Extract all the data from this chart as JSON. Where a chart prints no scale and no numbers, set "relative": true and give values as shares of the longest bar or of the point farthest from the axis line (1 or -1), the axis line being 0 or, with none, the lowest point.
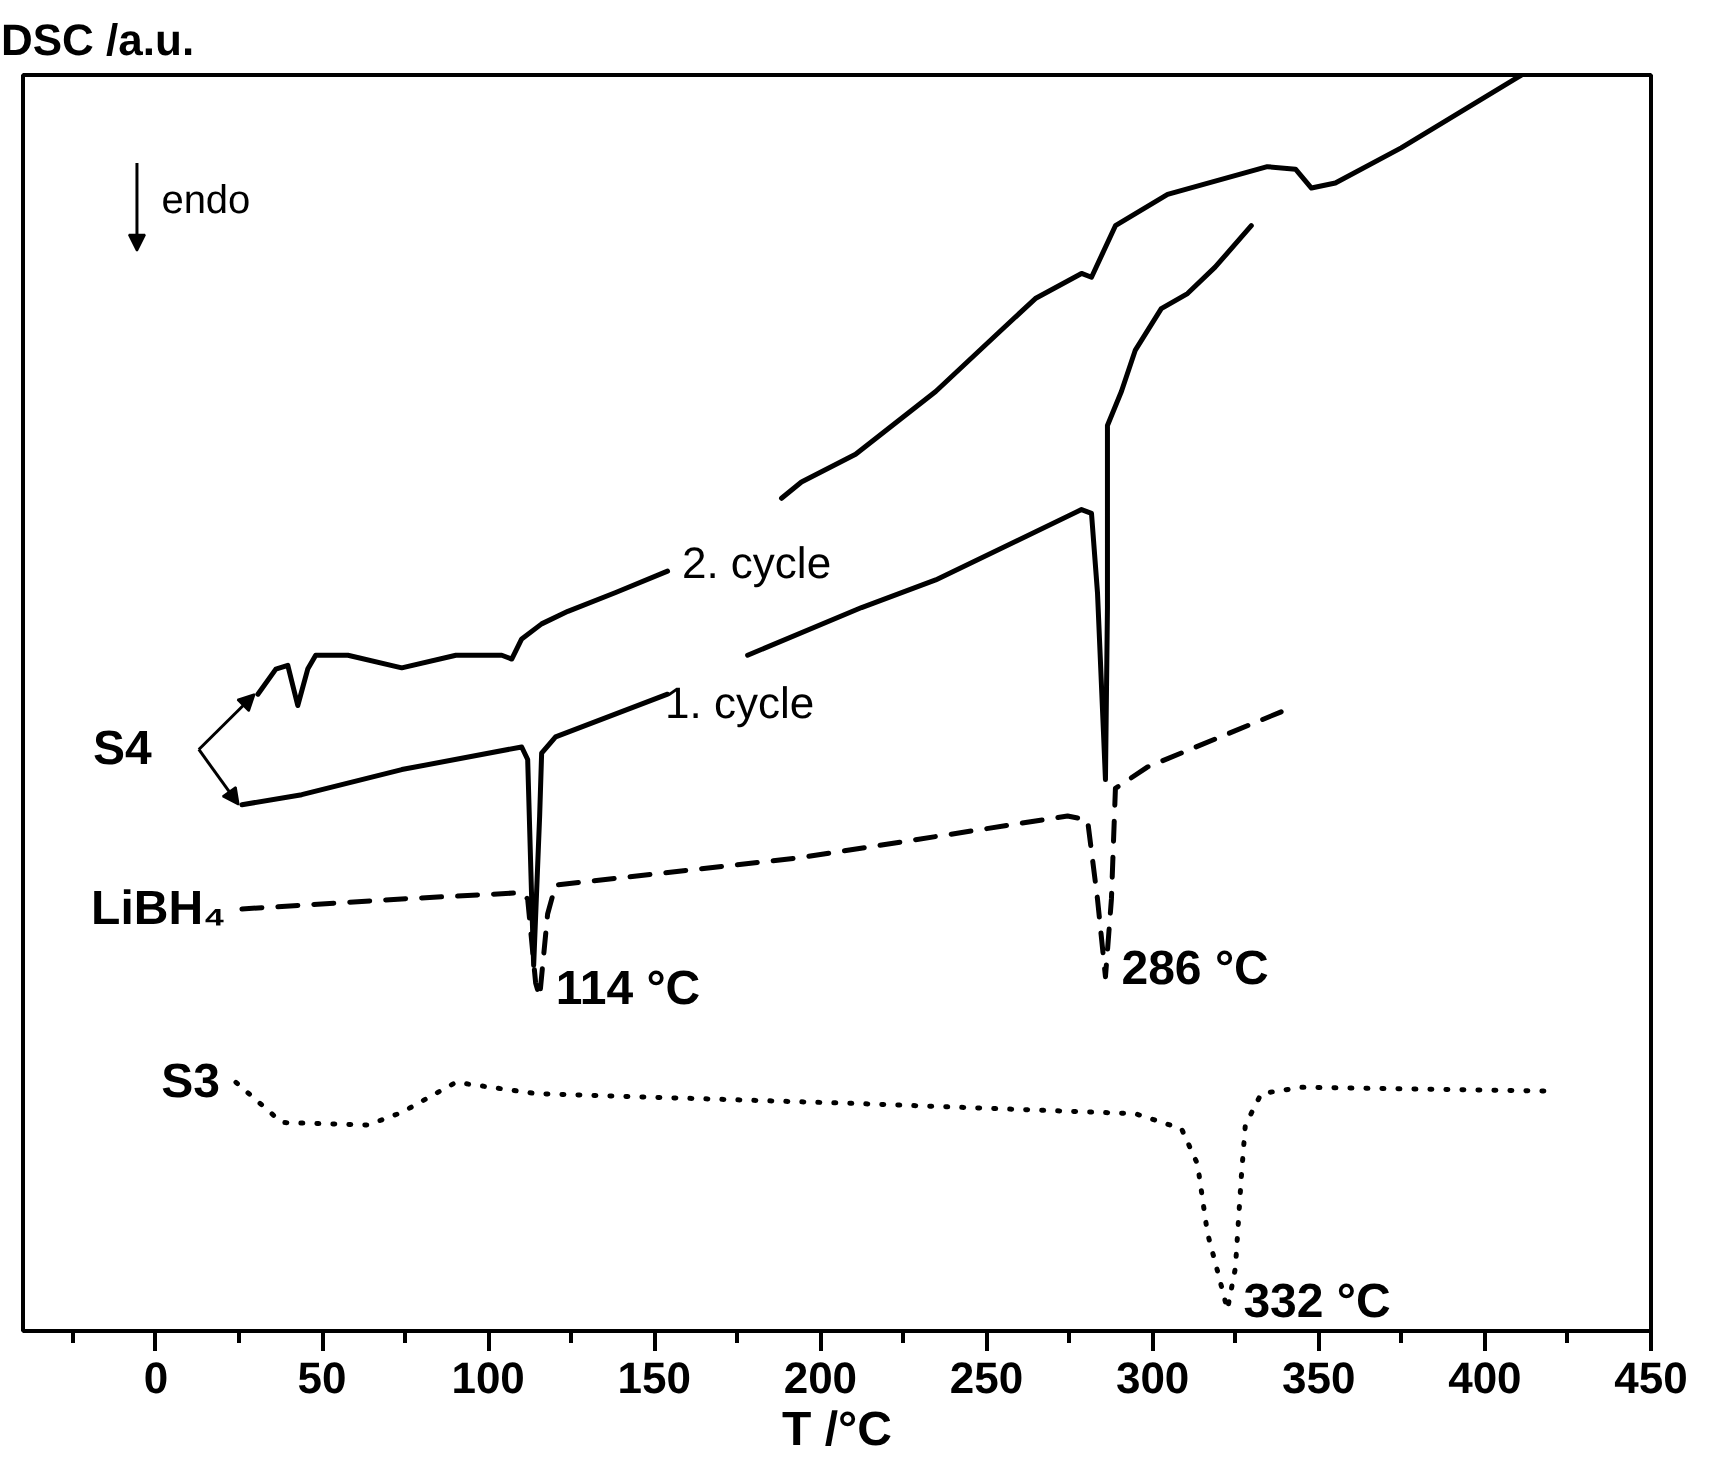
{
  "chart_data": {
    "type": "line",
    "relative": true,
    "ylabel": "DSC /a.u.",
    "xlabel": "T /°C",
    "xlim": [
      -40,
      450
    ],
    "xticks": [
      {
        "value": -25,
        "label": null
      },
      0,
      {
        "value": 25,
        "label": null
      },
      50,
      {
        "value": 75,
        "label": null
      },
      100,
      {
        "value": 125,
        "label": null
      },
      150,
      {
        "value": 175,
        "label": null
      },
      200,
      {
        "value": 225,
        "label": null
      },
      250,
      {
        "value": 275,
        "label": null
      },
      300,
      {
        "value": 325,
        "label": null
      },
      350,
      {
        "value": 375,
        "label": null
      },
      400,
      {
        "value": 425,
        "label": null
      },
      450
    ],
    "grid": false,
    "tick_labels": "x",
    "annotations": [
      "endo",
      "S4",
      {
        "text": "114 °C",
        "x": 115.5,
        "y": 0.266
      },
      {
        "text": "286 °C",
        "x": 285.8,
        "y": 0.282
      },
      {
        "text": "332 °C",
        "x": 322.5,
        "y": 0.017
      }
    ],
    "series": [
      {
        "name": "2. cycle",
        "color": "#000000",
        "line_style": "solid",
        "x": [
          30.7,
          36.1,
          39.7,
          42.7,
          45.7,
          48.1,
          57.8,
          74.0,
          90.3,
          104.1,
          107.1,
          110.1,
          116.1,
          124.0,
          138.4,
          154.0,
          170,
          188.3,
          194.3,
          210.6,
          234.7,
          254.5,
          264.7,
          278.6,
          281.6,
          288.8,
          304.5,
          334.5,
          343.0,
          347.8,
          355.0,
          374.8,
          409.1,
          411
        ],
        "values": [
          0.507,
          0.527,
          0.53,
          0.498,
          0.527,
          0.538,
          0.538,
          0.528,
          0.538,
          0.538,
          0.535,
          0.551,
          0.563,
          0.573,
          0.588,
          0.605,
          null,
          0.663,
          0.676,
          0.698,
          0.748,
          0.797,
          0.822,
          0.842,
          0.839,
          0.88,
          0.905,
          0.927,
          0.925,
          0.91,
          0.914,
          0.942,
          0.997,
          1.0
        ]
      },
      {
        "name": "1. cycle",
        "color": "#000000",
        "line_style": "solid",
        "x": [
          25.9,
          43.9,
          74.0,
          110.1,
          111.9,
          113.1,
          113.7,
          115.5,
          116.1,
          120.3,
          154.0,
          165,
          178.1,
          212.4,
          234.7,
          278.6,
          281.6,
          283.4,
          285.2,
          285.8,
          286.4,
          286.4,
          290.6,
          294.8,
          302.6,
          310.5,
          318.8,
          329.7
        ],
        "values": [
          0.419,
          0.427,
          0.447,
          0.465,
          0.455,
          0.344,
          0.291,
          0.41,
          0.46,
          0.473,
          0.507,
          null,
          0.538,
          0.576,
          0.598,
          0.654,
          0.651,
          0.588,
          0.477,
          0.439,
          0.576,
          0.721,
          0.748,
          0.781,
          0.814,
          0.826,
          0.847,
          0.88
        ]
      },
      {
        "name": "LiBH₄",
        "color": "#000000",
        "line_style": "dashed",
        "x": [
          25.9,
          74.0,
          110.1,
          111.9,
          114.3,
          115.5,
          117.9,
          120.3,
          194.3,
          274.4,
          280.4,
          283.4,
          285.8,
          287.6,
          288.8,
          298.4,
          338.7
        ],
        "values": [
          0.336,
          0.344,
          0.349,
          0.344,
          0.277,
          0.266,
          0.332,
          0.355,
          0.377,
          0.41,
          0.407,
          0.344,
          0.282,
          0.344,
          0.432,
          0.449,
          0.493
        ]
      },
      {
        "name": "S3",
        "color": "#000000",
        "line_style": "dotted",
        "x": [
          24.1,
          37.9,
          63.8,
          74.0,
          90.3,
          114.3,
          212.4,
          294.8,
          308.7,
          313.5,
          316.5,
          319.5,
          322.5,
          324.9,
          326.7,
          327.9,
          332.7,
          344.8,
          418.8
        ],
        "values": [
          0.198,
          0.166,
          0.164,
          0.174,
          0.198,
          0.189,
          0.181,
          0.173,
          0.161,
          0.133,
          0.078,
          0.048,
          0.017,
          0.05,
          0.123,
          0.164,
          0.189,
          0.194,
          0.191
        ]
      }
    ]
  }
}
